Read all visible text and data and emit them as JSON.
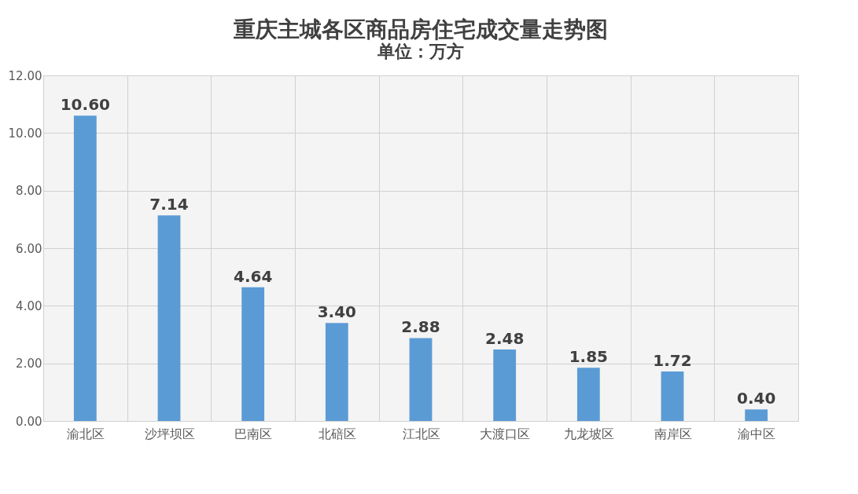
{
  "chart_data": {
    "type": "bar",
    "title": "重庆主城各区商品房住宅成交量走势图",
    "subtitle": "单位：万方",
    "categories": [
      "渝北区",
      "沙坪坝区",
      "巴南区",
      "北碚区",
      "江北区",
      "大渡口区",
      "九龙坡区",
      "南岸区",
      "渝中区"
    ],
    "values": [
      10.6,
      7.14,
      4.64,
      3.4,
      2.88,
      2.48,
      1.85,
      1.72,
      0.4
    ],
    "value_labels": [
      "10.60",
      "7.14",
      "4.64",
      "3.40",
      "2.88",
      "2.48",
      "1.85",
      "1.72",
      "0.40"
    ],
    "color": "#5b9bd5",
    "ylim": [
      0,
      12
    ],
    "yticks": [
      {
        "value": 0,
        "label": "0.00"
      },
      {
        "value": 2,
        "label": "2.00"
      },
      {
        "value": 4,
        "label": "4.00"
      },
      {
        "value": 6,
        "label": "6.00"
      },
      {
        "value": 8,
        "label": "8.00"
      },
      {
        "value": 10,
        "label": "10.00"
      },
      {
        "value": 12,
        "label": "12.00"
      }
    ],
    "grid": true
  }
}
